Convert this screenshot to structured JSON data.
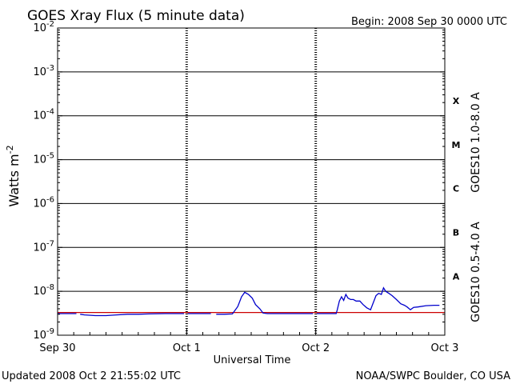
{
  "chart_data": {
    "type": "line",
    "title": "GOES Xray Flux (5 minute data)",
    "begin_label": "Begin:  2008 Sep 30 0000 UTC",
    "ylabel_base": "Watts m",
    "ylabel_exp": "-2",
    "xlabel": "Universal Time",
    "y_scale": "log",
    "ylim": [
      1e-09,
      0.01
    ],
    "xlim": [
      0,
      72
    ],
    "x_unit": "hours since 2008 Sep 30 00:00 UTC",
    "grid": {
      "horizontal": true,
      "vertical": "dotted-at-day-boundaries"
    },
    "y_ticks": [
      {
        "base": "10",
        "exp": "-9",
        "value": 1e-09
      },
      {
        "base": "10",
        "exp": "-8",
        "value": 1e-08
      },
      {
        "base": "10",
        "exp": "-7",
        "value": 1e-07
      },
      {
        "base": "10",
        "exp": "-6",
        "value": 1e-06
      },
      {
        "base": "10",
        "exp": "-5",
        "value": 1e-05
      },
      {
        "base": "10",
        "exp": "-4",
        "value": 0.0001
      },
      {
        "base": "10",
        "exp": "-3",
        "value": 0.001
      },
      {
        "base": "10",
        "exp": "-2",
        "value": 0.01
      }
    ],
    "x_ticks": [
      {
        "label": "Sep 30",
        "x": 0
      },
      {
        "label": "Oct 1",
        "x": 24
      },
      {
        "label": "Oct 2",
        "x": 48
      },
      {
        "label": "Oct 3",
        "x": 72
      }
    ],
    "flare_classes": [
      {
        "label": "X",
        "value": 0.00022
      },
      {
        "label": "M",
        "value": 2.2e-05
      },
      {
        "label": "C",
        "value": 2.2e-06
      },
      {
        "label": "B",
        "value": 2.2e-07
      },
      {
        "label": "A",
        "value": 2.2e-08
      }
    ],
    "series": [
      {
        "name": "GOES10 1.0-8.0 A",
        "color": "#cc0000",
        "segments": [
          [
            [
              0,
              3.3e-09
            ],
            [
              72,
              3.3e-09
            ]
          ]
        ]
      },
      {
        "name": "GOES10 0.5-4.0 A",
        "color": "#0000cc",
        "segments": [
          [
            [
              0,
              3.1e-09
            ],
            [
              3.5,
              3.1e-09
            ]
          ],
          [
            [
              4.2,
              3e-09
            ],
            [
              5,
              2.9e-09
            ],
            [
              7,
              2.8e-09
            ],
            [
              9,
              2.8e-09
            ],
            [
              11,
              2.9e-09
            ],
            [
              13,
              3e-09
            ],
            [
              15,
              3e-09
            ],
            [
              17,
              3.05e-09
            ],
            [
              20,
              3.1e-09
            ],
            [
              23.5,
              3.1e-09
            ]
          ],
          [
            [
              24.2,
              3.1e-09
            ],
            [
              27,
              3.1e-09
            ],
            [
              28.5,
              3.1e-09
            ]
          ],
          [
            [
              29.5,
              3e-09
            ],
            [
              31,
              3e-09
            ],
            [
              32.5,
              3.05e-09
            ],
            [
              33.5,
              4.5e-09
            ],
            [
              34.2,
              7.5e-09
            ],
            [
              34.8,
              9.5e-09
            ],
            [
              35.5,
              8.5e-09
            ],
            [
              36.2,
              7e-09
            ],
            [
              36.8,
              5e-09
            ],
            [
              37.6,
              4e-09
            ],
            [
              38.2,
              3.2e-09
            ],
            [
              39,
              3.1e-09
            ],
            [
              42,
              3.1e-09
            ],
            [
              45,
              3.1e-09
            ],
            [
              47.5,
              3.1e-09
            ]
          ],
          [
            [
              48.2,
              3.1e-09
            ],
            [
              50,
              3.1e-09
            ],
            [
              51.8,
              3.1e-09
            ],
            [
              52.0,
              3.8e-09
            ],
            [
              52.4,
              6e-09
            ],
            [
              52.8,
              7.5e-09
            ],
            [
              53.2,
              6.2e-09
            ],
            [
              53.6,
              8.5e-09
            ],
            [
              54.0,
              7e-09
            ],
            [
              54.5,
              6.5e-09
            ],
            [
              55.0,
              6.5e-09
            ],
            [
              55.5,
              6e-09
            ],
            [
              56.2,
              6e-09
            ],
            [
              56.8,
              5e-09
            ],
            [
              57.5,
              4.2e-09
            ],
            [
              58.2,
              3.8e-09
            ],
            [
              58.7,
              5.5e-09
            ],
            [
              59.2,
              8e-09
            ],
            [
              59.7,
              9e-09
            ],
            [
              60.2,
              8.5e-09
            ],
            [
              60.6,
              1.2e-08
            ],
            [
              61.0,
              1e-08
            ],
            [
              61.6,
              9e-09
            ],
            [
              62.2,
              8e-09
            ],
            [
              63.0,
              6.5e-09
            ],
            [
              63.8,
              5.2e-09
            ],
            [
              64.5,
              4.8e-09
            ],
            [
              65.0,
              4.4e-09
            ],
            [
              65.6,
              3.8e-09
            ],
            [
              66.2,
              4.3e-09
            ],
            [
              67.0,
              4.4e-09
            ],
            [
              68.5,
              4.7e-09
            ],
            [
              70.0,
              4.8e-09
            ],
            [
              71.0,
              4.8e-09
            ]
          ]
        ]
      }
    ]
  },
  "footer": {
    "updated": "Updated 2008 Oct  2 21:55:02 UTC",
    "credit": "NOAA/SWPC Boulder, CO USA"
  }
}
